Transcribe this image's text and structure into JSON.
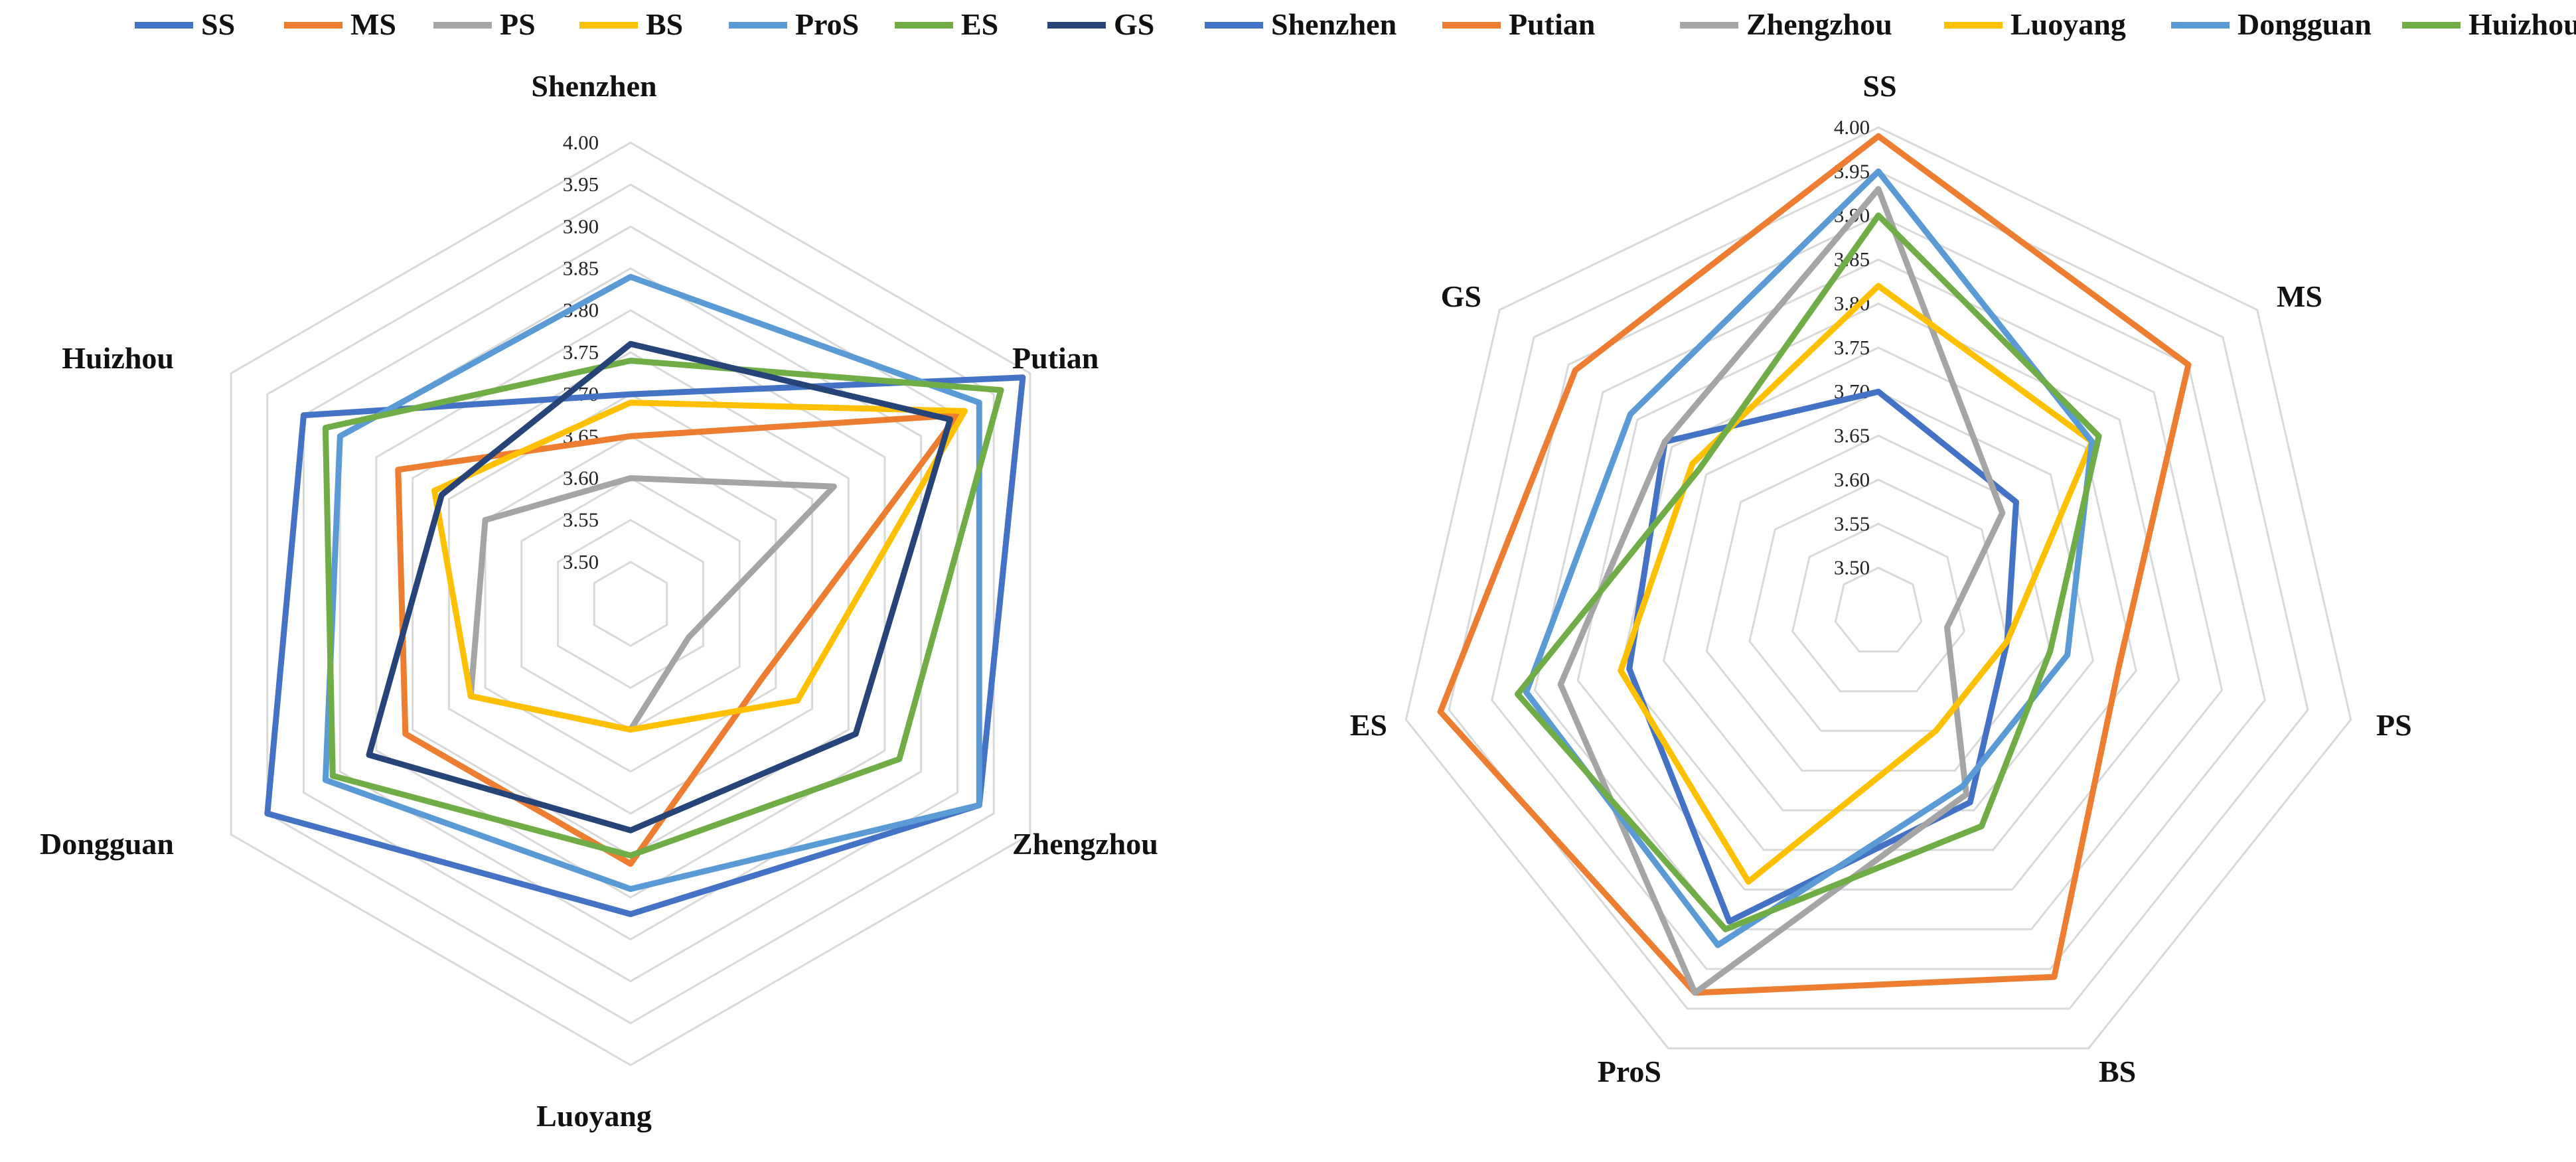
{
  "colors": {
    "blue": "#4472C4",
    "orange": "#ED7D31",
    "gray": "#A5A5A5",
    "gold": "#FFC000",
    "lightblue": "#5B9BD5",
    "green": "#70AD47",
    "navy": "#264478"
  },
  "chart_data": [
    {
      "type": "radar",
      "title": "",
      "rlim": [
        3.45,
        4.0
      ],
      "ticks": [
        "3.50",
        "3.55",
        "3.60",
        "3.65",
        "3.70",
        "3.75",
        "3.80",
        "3.85",
        "3.90",
        "3.95",
        "4.00"
      ],
      "tick_values": [
        3.5,
        3.55,
        3.6,
        3.65,
        3.7,
        3.75,
        3.8,
        3.85,
        3.9,
        3.95,
        4.0
      ],
      "legend_position": "top",
      "categories": [
        "Shenzhen",
        "Putian",
        "Zhengzhou",
        "Luoyang",
        "Dongguan",
        "Huizhou"
      ],
      "series": [
        {
          "name": "SS",
          "color_key": "blue",
          "values": [
            3.7,
            3.99,
            3.93,
            3.82,
            3.95,
            3.9
          ]
        },
        {
          "name": "MS",
          "color_key": "orange",
          "values": [
            3.65,
            3.9,
            3.63,
            3.76,
            3.76,
            3.77
          ]
        },
        {
          "name": "PS",
          "color_key": "gray",
          "values": [
            3.6,
            3.73,
            3.53,
            3.6,
            3.67,
            3.65
          ]
        },
        {
          "name": "BS",
          "color_key": "gold",
          "values": [
            3.69,
            3.91,
            3.68,
            3.6,
            3.67,
            3.72
          ]
        },
        {
          "name": "ProS",
          "color_key": "lightblue",
          "values": [
            3.84,
            3.93,
            3.93,
            3.79,
            3.87,
            3.85
          ]
        },
        {
          "name": "ES",
          "color_key": "green",
          "values": [
            3.74,
            3.96,
            3.82,
            3.75,
            3.86,
            3.87
          ]
        },
        {
          "name": "GS",
          "color_key": "navy",
          "values": [
            3.76,
            3.89,
            3.76,
            3.72,
            3.81,
            3.71
          ]
        }
      ]
    },
    {
      "type": "radar",
      "title": "",
      "rlim": [
        3.45,
        4.0
      ],
      "ticks": [
        "3.50",
        "3.55",
        "3.60",
        "3.65",
        "3.70",
        "3.75",
        "3.80",
        "3.85",
        "3.90",
        "3.95",
        "4.00"
      ],
      "tick_values": [
        3.5,
        3.55,
        3.6,
        3.65,
        3.7,
        3.75,
        3.8,
        3.85,
        3.9,
        3.95,
        4.0
      ],
      "legend_position": "top",
      "categories": [
        "SS",
        "MS",
        "PS",
        "BS",
        "ProS",
        "ES",
        "GS"
      ],
      "series": [
        {
          "name": "Shenzhen",
          "color_key": "blue",
          "values": [
            3.7,
            3.65,
            3.6,
            3.69,
            3.84,
            3.74,
            3.76
          ]
        },
        {
          "name": "Putian",
          "color_key": "orange",
          "values": [
            3.99,
            3.9,
            3.73,
            3.91,
            3.93,
            3.96,
            3.89
          ]
        },
        {
          "name": "Zhengzhou",
          "color_key": "gray",
          "values": [
            3.93,
            3.63,
            3.53,
            3.68,
            3.93,
            3.82,
            3.76
          ]
        },
        {
          "name": "Luoyang",
          "color_key": "gold",
          "values": [
            3.82,
            3.76,
            3.6,
            3.6,
            3.79,
            3.75,
            3.72
          ]
        },
        {
          "name": "Dongguan",
          "color_key": "lightblue",
          "values": [
            3.95,
            3.76,
            3.67,
            3.67,
            3.87,
            3.86,
            3.81
          ]
        },
        {
          "name": "Huizhou",
          "color_key": "green",
          "values": [
            3.9,
            3.77,
            3.65,
            3.72,
            3.85,
            3.87,
            3.71
          ]
        }
      ]
    }
  ]
}
